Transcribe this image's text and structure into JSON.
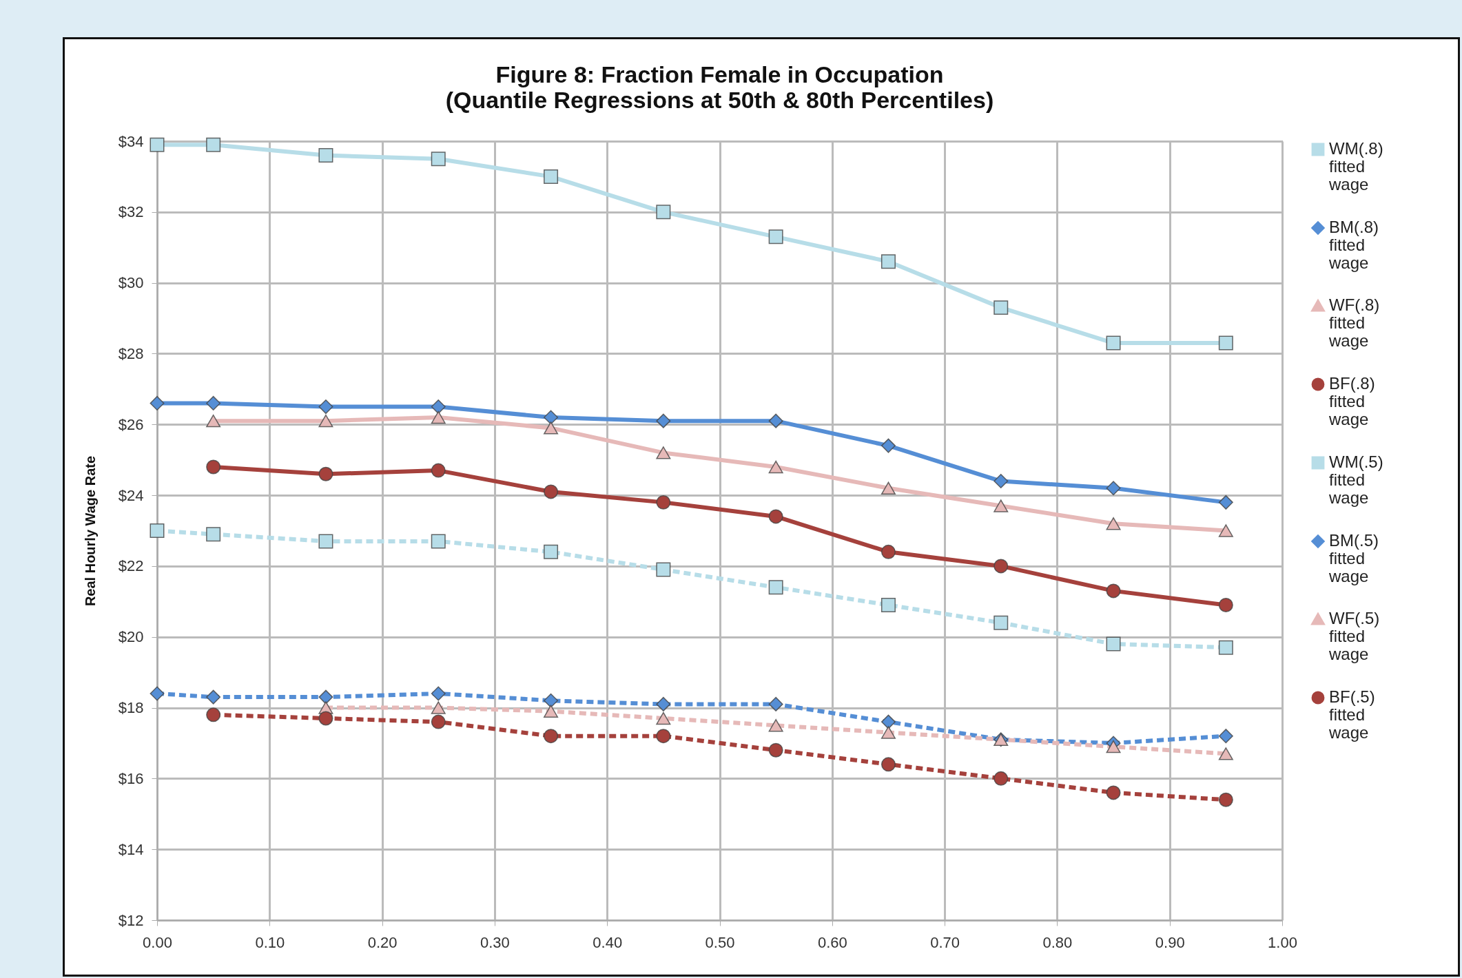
{
  "chart_data": {
    "type": "line",
    "title": "Figure 8: Fraction Female in Occupation",
    "subtitle": "(Quantile Regressions at 50th & 80th Percentiles)",
    "ylabel": "Real Hourly Wage Rate",
    "x": [
      0,
      0.05,
      0.15,
      0.25,
      0.35,
      0.45,
      0.55,
      0.65,
      0.75,
      0.85,
      0.95
    ],
    "series": [
      {
        "name": "WM(.8) fitted wage",
        "color": "#b7dde8",
        "marker": "square",
        "line_style": "solid",
        "values": [
          33.9,
          33.9,
          33.6,
          33.5,
          33.0,
          32.0,
          31.3,
          30.6,
          29.3,
          28.3,
          28.3
        ]
      },
      {
        "name": "BM(.8) fitted wage",
        "color": "#558ed5",
        "marker": "diamond",
        "line_style": "solid",
        "values": [
          26.6,
          26.6,
          26.5,
          26.5,
          26.2,
          26.1,
          26.1,
          25.4,
          24.4,
          24.2,
          23.8
        ]
      },
      {
        "name": "WF(.8) fitted wage",
        "color": "#e6b9b8",
        "marker": "triangle",
        "line_style": "solid",
        "values": [
          null,
          26.1,
          26.1,
          26.2,
          25.9,
          25.2,
          24.8,
          24.2,
          23.7,
          23.2,
          23.0
        ]
      },
      {
        "name": "BF(.8) fitted wage",
        "color": "#a5413c",
        "marker": "circle",
        "line_style": "solid",
        "values": [
          null,
          24.8,
          24.6,
          24.7,
          24.1,
          23.8,
          23.4,
          22.4,
          22.0,
          21.3,
          20.9
        ]
      },
      {
        "name": "WM(.5) fitted wage",
        "color": "#b7dde8",
        "marker": "square",
        "line_style": "dashed",
        "values": [
          23.0,
          22.9,
          22.7,
          22.7,
          22.4,
          21.9,
          21.4,
          20.9,
          20.4,
          19.8,
          19.7
        ]
      },
      {
        "name": "BM(.5) fitted wage",
        "color": "#558ed5",
        "marker": "diamond",
        "line_style": "dashed",
        "values": [
          18.4,
          18.3,
          18.3,
          18.4,
          18.2,
          18.1,
          18.1,
          17.6,
          17.1,
          17.0,
          17.2
        ]
      },
      {
        "name": "WF(.5) fitted wage",
        "color": "#e6b9b8",
        "marker": "triangle",
        "line_style": "dashed",
        "values": [
          null,
          null,
          18.0,
          18.0,
          17.9,
          17.7,
          17.5,
          17.3,
          17.1,
          16.9,
          16.7
        ]
      },
      {
        "name": "BF(.5) fitted wage",
        "color": "#a5413c",
        "marker": "circle",
        "line_style": "dashed",
        "values": [
          null,
          17.8,
          17.7,
          17.6,
          17.2,
          17.2,
          16.8,
          16.4,
          16.0,
          15.6,
          15.4
        ]
      }
    ],
    "xlim": [
      0,
      1
    ],
    "xticks": [
      {
        "value": 0,
        "label": "0.00"
      },
      {
        "value": 0.1,
        "label": "0.10"
      },
      {
        "value": 0.2,
        "label": "0.20"
      },
      {
        "value": 0.3,
        "label": "0.30"
      },
      {
        "value": 0.4,
        "label": "0.40"
      },
      {
        "value": 0.5,
        "label": "0.50"
      },
      {
        "value": 0.6,
        "label": "0.60"
      },
      {
        "value": 0.7,
        "label": "0.70"
      },
      {
        "value": 0.8,
        "label": "0.80"
      },
      {
        "value": 0.9,
        "label": "0.90"
      },
      {
        "value": 1,
        "label": "1.00"
      }
    ],
    "ylim": [
      12,
      34
    ],
    "yticks": [
      {
        "value": 12,
        "label": "$12"
      },
      {
        "value": 14,
        "label": "$14"
      },
      {
        "value": 16,
        "label": "$16"
      },
      {
        "value": 18,
        "label": "$18"
      },
      {
        "value": 20,
        "label": "$20"
      },
      {
        "value": 22,
        "label": "$22"
      },
      {
        "value": 24,
        "label": "$24"
      },
      {
        "value": 26,
        "label": "$26"
      },
      {
        "value": 28,
        "label": "$28"
      },
      {
        "value": 30,
        "label": "$30"
      },
      {
        "value": 32,
        "label": "$32"
      },
      {
        "value": 34,
        "label": "$34"
      }
    ],
    "grid": true,
    "legend": "right"
  }
}
